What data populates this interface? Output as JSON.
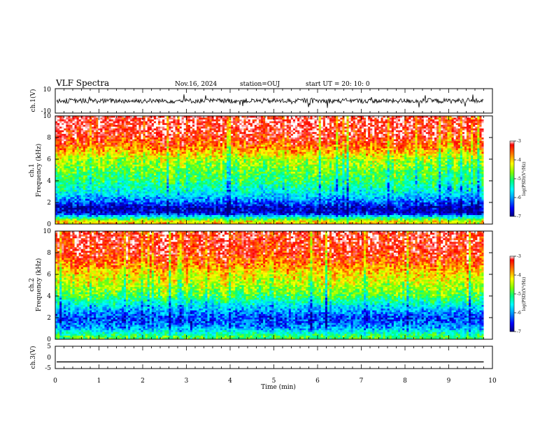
{
  "header": {
    "title": "VLF Spectra",
    "date": "Nov.16, 2024",
    "station": "station=OUJ",
    "start": "start  UT  =   20: 10: 0"
  },
  "chart_data": [
    {
      "type": "line",
      "panel": "ch1-waveform",
      "ylabel": "ch.1(V)",
      "ylim": [
        -10,
        10
      ],
      "yticks": [
        "10",
        "-10"
      ],
      "xlim": [
        0,
        10
      ],
      "series": [
        {
          "values_description": "",
          "baseline": 0,
          "amplitude": 2
        }
      ]
    },
    {
      "type": "heatmap",
      "panel": "ch1-spectrogram",
      "ylabel_top": "ch.1",
      "ylabel_bottom": "Frequency (kHz)",
      "ylim": [
        0,
        10
      ],
      "yticks": [
        "0",
        "2",
        "4",
        "6",
        "8",
        "10"
      ],
      "xlim": [
        0,
        10
      ],
      "data_end_min": 9.8,
      "colorbar": {
        "label": "log(PSD)(V²/Hz)",
        "range": [
          -7,
          -3
        ],
        "ticks": [
          "-3",
          "-4",
          "-5",
          "-6",
          "-7"
        ],
        "colormap": [
          "#000080",
          "#0000ff",
          "#00a0ff",
          "#00ffff",
          "#00ff80",
          "#80ff00",
          "#ffff00",
          "#ff8000",
          "#ff0000",
          "#ffffff"
        ]
      },
      "profile_log_psd": [
        {
          "freq_khz": 0.2,
          "value": -4.2
        },
        {
          "freq_khz": 1.0,
          "value": -6.7
        },
        {
          "freq_khz": 1.5,
          "value": -6.8
        },
        {
          "freq_khz": 2.0,
          "value": -6.3
        },
        {
          "freq_khz": 3.0,
          "value": -5.6
        },
        {
          "freq_khz": 4.0,
          "value": -5.2
        },
        {
          "freq_khz": 5.0,
          "value": -4.9
        },
        {
          "freq_khz": 6.0,
          "value": -4.6
        },
        {
          "freq_khz": 7.0,
          "value": -3.9
        },
        {
          "freq_khz": 8.0,
          "value": -3.5
        },
        {
          "freq_khz": 9.0,
          "value": -3.3
        },
        {
          "freq_khz": 10.0,
          "value": -3.3
        }
      ]
    },
    {
      "type": "heatmap",
      "panel": "ch2-spectrogram",
      "ylabel_top": "ch.2",
      "ylabel_bottom": "Frequency (kHz)",
      "ylim": [
        0,
        10
      ],
      "yticks": [
        "0",
        "2",
        "4",
        "6",
        "8",
        "10"
      ],
      "xlim": [
        0,
        10
      ],
      "data_end_min": 9.8,
      "colorbar": {
        "label": "log(PSD)(V²/Hz)",
        "range": [
          -7,
          -3
        ],
        "ticks": [
          "-3",
          "-4",
          "-5",
          "-6",
          "-7"
        ],
        "colormap": [
          "#000080",
          "#0000ff",
          "#00a0ff",
          "#00ffff",
          "#00ff80",
          "#80ff00",
          "#ffff00",
          "#ff8000",
          "#ff0000",
          "#ffffff"
        ]
      },
      "profile_log_psd": [
        {
          "freq_khz": 0.2,
          "value": -5.0
        },
        {
          "freq_khz": 1.0,
          "value": -6.0
        },
        {
          "freq_khz": 1.5,
          "value": -6.3
        },
        {
          "freq_khz": 2.0,
          "value": -6.4
        },
        {
          "freq_khz": 3.0,
          "value": -5.8
        },
        {
          "freq_khz": 4.0,
          "value": -5.0
        },
        {
          "freq_khz": 5.0,
          "value": -4.6
        },
        {
          "freq_khz": 6.0,
          "value": -4.3
        },
        {
          "freq_khz": 7.0,
          "value": -3.8
        },
        {
          "freq_khz": 8.0,
          "value": -3.5
        },
        {
          "freq_khz": 9.0,
          "value": -3.4
        },
        {
          "freq_khz": 10.0,
          "value": -3.4
        }
      ]
    },
    {
      "type": "line",
      "panel": "ch3-waveform",
      "ylabel": "ch.3(V)",
      "ylim": [
        -5,
        5
      ],
      "yticks": [
        "5",
        "0",
        "-5"
      ],
      "xlim": [
        0,
        10
      ],
      "series": [
        {
          "baseline": -2.0,
          "amplitude": 0
        }
      ]
    }
  ],
  "xaxis": {
    "label": "Time (min)",
    "ticks": [
      "0",
      "1",
      "2",
      "3",
      "4",
      "5",
      "6",
      "7",
      "8",
      "9",
      "10"
    ]
  }
}
